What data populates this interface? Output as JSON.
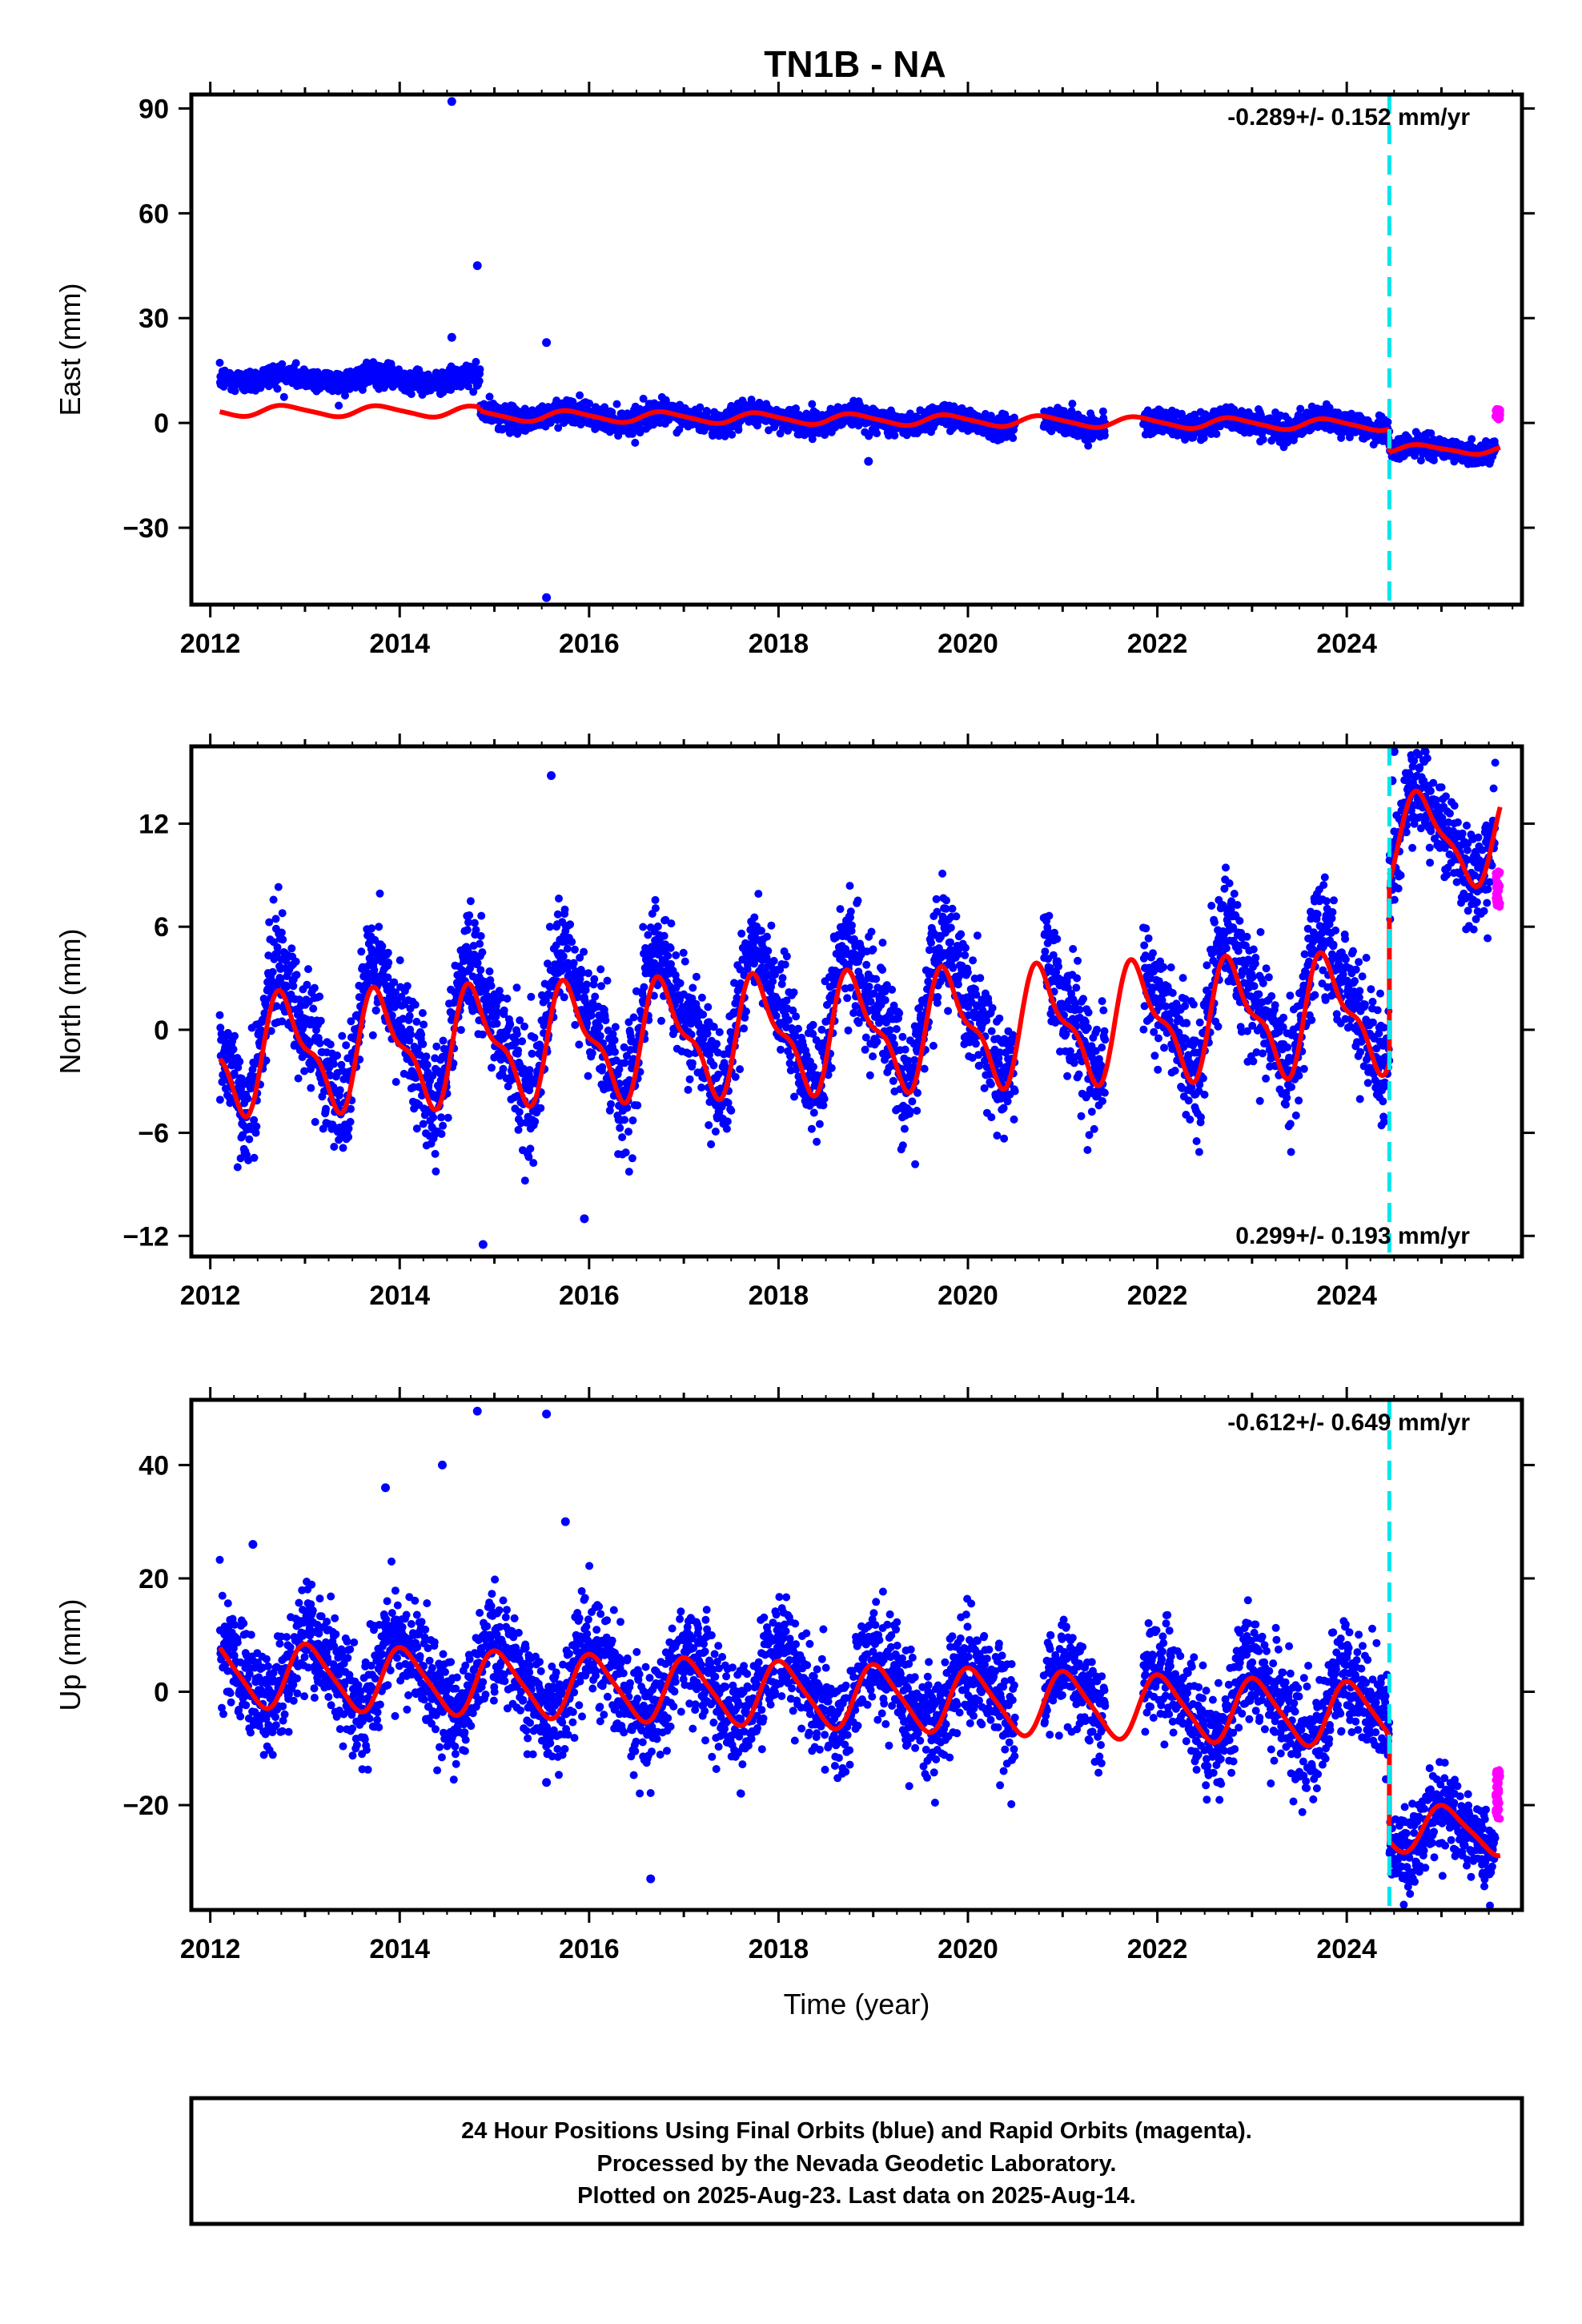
{
  "title": "TN1B - NA",
  "footer": {
    "lines": [
      "24 Hour Positions Using Final Orbits (blue) and Rapid Orbits (magenta).",
      "Processed by the Nevada Geodetic Laboratory.",
      "Plotted on 2025-Aug-23. Last data on 2025-Aug-14."
    ]
  },
  "colors": {
    "final_orbits": "#0000ff",
    "rapid_orbits": "#ff00ff",
    "model_fit": "#ff0000",
    "event_line": "#00e5ee"
  },
  "chart_data": [
    {
      "type": "scatter",
      "component": "east",
      "ylabel": "East (mm)",
      "xlabel": "",
      "xlim": [
        2011.8,
        2025.85
      ],
      "ylim": [
        -52,
        94
      ],
      "xticks": [
        2012,
        2014,
        2016,
        2018,
        2020,
        2022,
        2024
      ],
      "xtick_labels": [
        "2012",
        "2014",
        "2016",
        "2018",
        "2020",
        "2022",
        "2024"
      ],
      "yticks": [
        -30,
        0,
        30,
        60,
        90
      ],
      "ytick_labels": [
        "−30",
        "0",
        "30",
        "60",
        "90"
      ],
      "rate": "-0.289+/- 0.152 mm/yr",
      "rate_position": "top-right",
      "event_line_x": 2024.45,
      "model": {
        "segments": [
          {
            "t0": 2012.1,
            "t1": 2014.85,
            "offset": 3.5,
            "slope": -0.1,
            "amp1": 1.5,
            "amp2": 0.3
          },
          {
            "t0": 2014.85,
            "t1": 2024.45,
            "offset": 3.0,
            "slope": -0.29,
            "amp1": 1.5,
            "amp2": 0.3
          },
          {
            "t0": 2024.45,
            "t1": 2025.62,
            "offset": -3.8,
            "slope": -0.29,
            "amp1": 1.2,
            "amp2": 0.3
          }
        ],
        "phase": 0.55
      },
      "scatter_model": {
        "segments": [
          {
            "t0": 2012.1,
            "t1": 2014.85,
            "offset": 13.0,
            "slope": -0.2,
            "amp1": 1.0,
            "amp2": 0.2,
            "noise": 1.6
          },
          {
            "t0": 2014.85,
            "t1": 2024.45,
            "offset": 3.0,
            "slope": -0.29,
            "amp1": 1.5,
            "amp2": 0.3,
            "noise": 1.7
          },
          {
            "t0": 2024.45,
            "t1": 2025.57,
            "offset": -3.8,
            "slope": -0.29,
            "amp1": 1.2,
            "amp2": 0.3,
            "noise": 1.5
          }
        ],
        "gaps": [
          [
            2020.5,
            2020.8
          ],
          [
            2021.45,
            2021.85
          ]
        ],
        "phase": 0.55
      },
      "outliers": [
        {
          "x": 2014.55,
          "y": 92
        },
        {
          "x": 2014.82,
          "y": 45
        },
        {
          "x": 2014.55,
          "y": 24.5
        },
        {
          "x": 2015.55,
          "y": 23
        },
        {
          "x": 2018.95,
          "y": -11
        },
        {
          "x": 2015.55,
          "y": -50
        }
      ],
      "rapid": {
        "t0": 2025.57,
        "t1": 2025.62,
        "center": 2.5,
        "spread": 3.0
      }
    },
    {
      "type": "scatter",
      "component": "north",
      "ylabel": "North (mm)",
      "xlabel": "",
      "xlim": [
        2011.8,
        2025.85
      ],
      "ylim": [
        -13.2,
        16.5
      ],
      "xticks": [
        2012,
        2014,
        2016,
        2018,
        2020,
        2022,
        2024
      ],
      "xtick_labels": [
        "2012",
        "2014",
        "2016",
        "2018",
        "2020",
        "2022",
        "2024"
      ],
      "yticks": [
        -12,
        -6,
        0,
        6,
        12
      ],
      "ytick_labels": [
        "−12",
        "−6",
        "0",
        "6",
        "12"
      ],
      "rate": "0.299+/- 0.193 mm/yr",
      "rate_position": "bottom-right",
      "event_line_x": 2024.45,
      "model": {
        "segments": [
          {
            "t0": 2012.1,
            "t1": 2024.45,
            "offset": -1.5,
            "slope": 0.2,
            "amp1": 3.0,
            "amp2": 1.2
          },
          {
            "t0": 2024.45,
            "t1": 2025.62,
            "offset": 7.2,
            "slope": 0.3,
            "amp1": 2.5,
            "amp2": 0.8
          }
        ],
        "phase": 0.55
      },
      "scatter_model": {
        "segments": [
          {
            "t0": 2012.1,
            "t1": 2024.45,
            "offset": -0.5,
            "slope": 0.2,
            "amp1": 3.5,
            "amp2": 1.2,
            "noise": 1.6
          },
          {
            "t0": 2024.45,
            "t1": 2025.57,
            "offset": 7.5,
            "slope": 0.3,
            "amp1": 2.5,
            "amp2": 0.8,
            "noise": 1.3
          }
        ],
        "gaps": [
          [
            2020.5,
            2020.8
          ],
          [
            2021.45,
            2021.85
          ]
        ],
        "phase": 0.55
      },
      "outliers": [
        {
          "x": 2015.6,
          "y": 14.8
        },
        {
          "x": 2014.88,
          "y": -12.5
        },
        {
          "x": 2015.95,
          "y": -11.0
        },
        {
          "x": 2024.5,
          "y": 16.2
        },
        {
          "x": 2024.48,
          "y": 14.5
        }
      ],
      "rapid": {
        "t0": 2025.57,
        "t1": 2025.62,
        "center": 8.2,
        "spread": 2.2
      }
    },
    {
      "type": "scatter",
      "component": "up",
      "ylabel": "Up (mm)",
      "xlabel": "Time (year)",
      "xlim": [
        2011.8,
        2025.85
      ],
      "ylim": [
        -38.5,
        51.5
      ],
      "xticks": [
        2012,
        2014,
        2016,
        2018,
        2020,
        2022,
        2024
      ],
      "xtick_labels": [
        "2012",
        "2014",
        "2016",
        "2018",
        "2020",
        "2022",
        "2024"
      ],
      "yticks": [
        -20,
        0,
        20,
        40
      ],
      "ytick_labels": [
        "−20",
        "0",
        "20",
        "40"
      ],
      "rate": "-0.612+/- 0.649 mm/yr",
      "rate_position": "top-right",
      "event_line_x": 2024.45,
      "model": {
        "segments": [
          {
            "t0": 2012.1,
            "t1": 2024.45,
            "offset": 3.2,
            "slope": -0.6,
            "amp1": 5.5,
            "amp2": 1.0
          },
          {
            "t0": 2024.45,
            "t1": 2025.62,
            "offset": -16.5,
            "slope": -0.6,
            "amp1": 4.0,
            "amp2": 0.8
          }
        ],
        "phase": 0.8
      },
      "scatter_model": {
        "segments": [
          {
            "t0": 2012.1,
            "t1": 2024.45,
            "offset": 4.2,
            "slope": -0.6,
            "amp1": 6.0,
            "amp2": 1.0,
            "noise": 4.6
          },
          {
            "t0": 2024.45,
            "t1": 2025.57,
            "offset": -17.0,
            "slope": -0.6,
            "amp1": 4.0,
            "amp2": 0.8,
            "noise": 3.8
          }
        ],
        "gaps": [
          [
            2020.5,
            2020.8
          ],
          [
            2021.45,
            2021.85
          ]
        ],
        "phase": 0.8
      },
      "outliers": [
        {
          "x": 2014.82,
          "y": 49.5
        },
        {
          "x": 2015.55,
          "y": 49
        },
        {
          "x": 2013.85,
          "y": 36
        },
        {
          "x": 2014.45,
          "y": 40
        },
        {
          "x": 2015.75,
          "y": 30
        },
        {
          "x": 2012.45,
          "y": 26
        },
        {
          "x": 2016.65,
          "y": -33
        },
        {
          "x": 2015.55,
          "y": -16
        },
        {
          "x": 2024.48,
          "y": -32
        }
      ],
      "rapid": {
        "t0": 2025.57,
        "t1": 2025.62,
        "center": -18,
        "spread": 9.0
      }
    }
  ]
}
